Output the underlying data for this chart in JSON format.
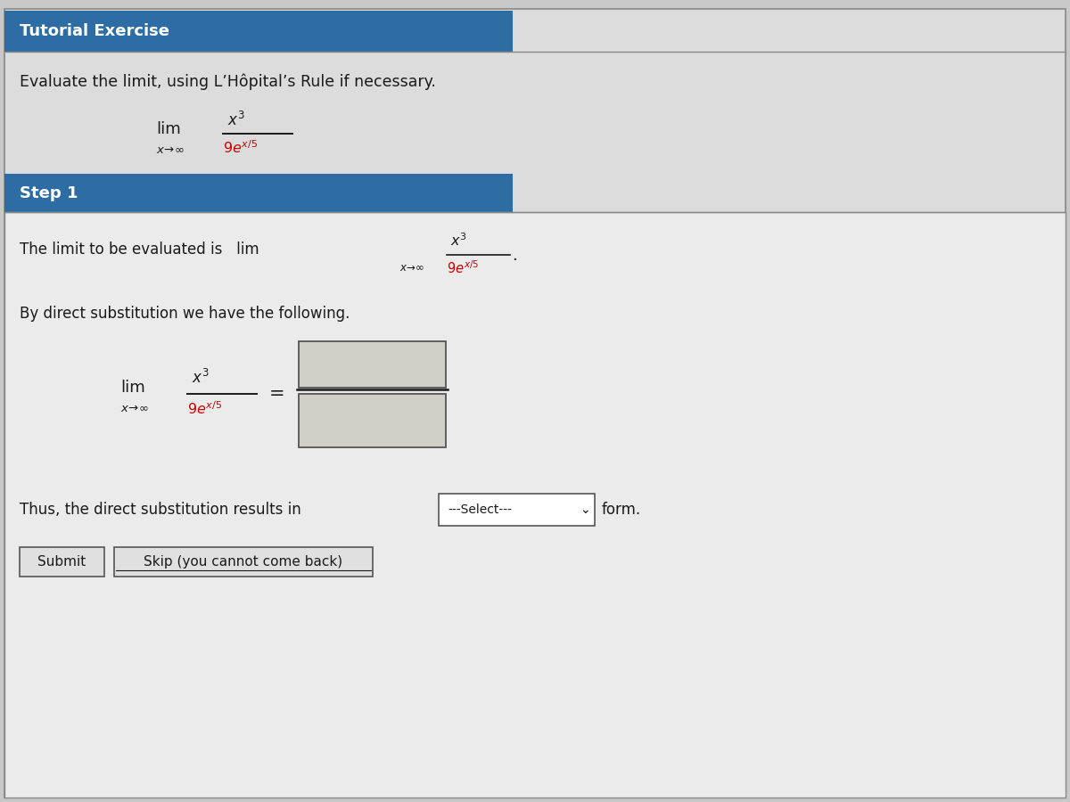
{
  "bg_color": "#c8c8c8",
  "header_bg": "#2e6da4",
  "header_text_color": "#ffffff",
  "body_text_color": "#1a1a1a",
  "red_text_color": "#cc0000",
  "title": "Tutorial Exercise",
  "subtitle": "Evaluate the limit, using L’Hôpital’s Rule if necessary.",
  "step1_label": "Step 1",
  "select_label": "---Select---",
  "form_label": "form.",
  "submit_label": "Submit",
  "skip_label": "Skip (you cannot come back)",
  "input_box_color": "#d0cfc8",
  "button_border_color": "#555555",
  "outer_border_color": "#888888"
}
